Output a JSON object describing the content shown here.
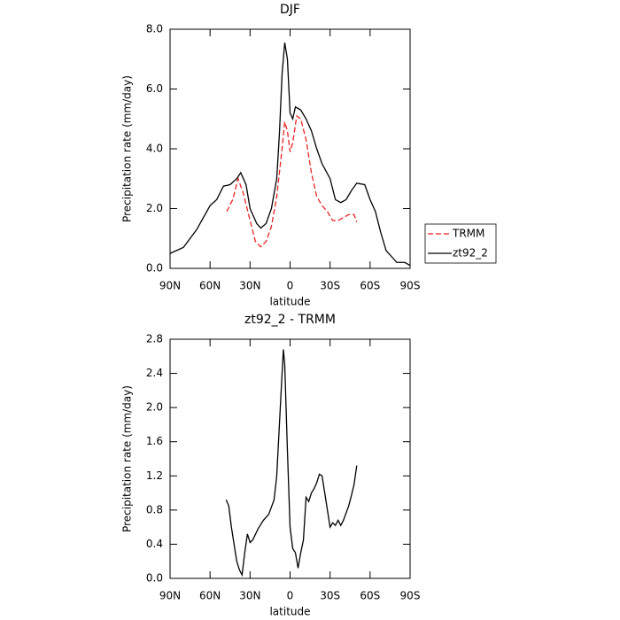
{
  "chart_data": [
    {
      "type": "line",
      "title": "DJF",
      "xlabel": "latitude",
      "ylabel": "Precipitation rate (mm/day)",
      "xlim": [
        90,
        -90
      ],
      "ylim": [
        0,
        8
      ],
      "xticks": [
        {
          "value": 90,
          "label": "90N"
        },
        {
          "value": 60,
          "label": "60N"
        },
        {
          "value": 30,
          "label": "30N"
        },
        0,
        {
          "value": -30,
          "label": "30S"
        },
        {
          "value": -60,
          "label": "60S"
        },
        {
          "value": -90,
          "label": "90S"
        }
      ],
      "yticks": [
        {
          "value": 0,
          "label": "0.0"
        },
        {
          "value": 2,
          "label": "2.0"
        },
        {
          "value": 4,
          "label": "4.0"
        },
        {
          "value": 6,
          "label": "6.0"
        },
        {
          "value": 8,
          "label": "8.0"
        }
      ],
      "legend": "right",
      "series": [
        {
          "name": "TRMM",
          "color": "#e8231f",
          "linestyle": "dashed",
          "x": [
            47.5,
            43,
            39,
            35,
            30,
            26,
            22,
            18,
            14,
            10,
            6,
            4,
            2,
            0,
            -2,
            -5,
            -8,
            -12,
            -16,
            -20,
            -24,
            -28,
            -32,
            -36,
            -40,
            -44,
            -48,
            -50
          ],
          "values": [
            1.9,
            2.3,
            3.0,
            2.5,
            1.6,
            0.9,
            0.72,
            0.9,
            1.4,
            2.4,
            4.0,
            4.9,
            4.6,
            3.9,
            4.2,
            5.1,
            5.0,
            4.3,
            3.2,
            2.4,
            2.1,
            1.9,
            1.6,
            1.6,
            1.7,
            1.8,
            1.8,
            1.55
          ]
        },
        {
          "name": "zt92_2",
          "color": "#000000",
          "linestyle": "solid",
          "x": [
            90,
            80,
            70,
            60,
            55,
            50,
            45,
            40,
            37,
            33,
            30,
            25,
            22,
            18,
            14,
            10,
            8,
            6,
            4,
            2,
            0,
            -2,
            -4,
            -8,
            -12,
            -16,
            -20,
            -24,
            -30,
            -34,
            -38,
            -42,
            -46,
            -50,
            -56,
            -60,
            -64,
            -68,
            -72,
            -76,
            -80,
            -86,
            -90
          ],
          "values": [
            0.5,
            0.7,
            1.3,
            2.1,
            2.3,
            2.75,
            2.8,
            3.0,
            3.2,
            2.8,
            2.0,
            1.5,
            1.35,
            1.5,
            2.0,
            3.0,
            4.5,
            6.5,
            7.55,
            7.0,
            5.2,
            5.0,
            5.4,
            5.3,
            5.0,
            4.6,
            4.0,
            3.5,
            3.0,
            2.3,
            2.2,
            2.3,
            2.6,
            2.85,
            2.8,
            2.3,
            1.9,
            1.2,
            0.6,
            0.4,
            0.2,
            0.2,
            0.1
          ]
        }
      ]
    },
    {
      "type": "line",
      "title": "zt92_2 - TRMM",
      "xlabel": "latitude",
      "ylabel": "Precipitation rate (mm/day)",
      "xlim": [
        90,
        -90
      ],
      "ylim": [
        0,
        2.8
      ],
      "xticks": [
        {
          "value": 90,
          "label": "90N"
        },
        {
          "value": 60,
          "label": "60N"
        },
        {
          "value": 30,
          "label": "30N"
        },
        0,
        {
          "value": -30,
          "label": "30S"
        },
        {
          "value": -60,
          "label": "60S"
        },
        {
          "value": -90,
          "label": "90S"
        }
      ],
      "yticks": [
        {
          "value": 0,
          "label": "0.0"
        },
        0.4,
        0.8,
        1.2,
        1.6,
        {
          "value": 2,
          "label": "2.0"
        },
        2.4,
        2.8
      ],
      "series": [
        {
          "color": "#000000",
          "linestyle": "solid",
          "x": [
            48,
            46,
            44,
            42,
            40,
            38,
            36,
            34,
            32,
            30,
            28,
            24,
            20,
            16,
            12,
            10,
            8,
            6,
            5,
            4,
            2,
            0,
            -2,
            -4,
            -6,
            -8,
            -10,
            -12,
            -14,
            -16,
            -18,
            -20,
            -22,
            -24,
            -26,
            -28,
            -30,
            -32,
            -34,
            -36,
            -38,
            -40,
            -44,
            -46,
            -48,
            -50
          ],
          "values": [
            0.92,
            0.85,
            0.6,
            0.4,
            0.2,
            0.1,
            0.04,
            0.3,
            0.52,
            0.42,
            0.45,
            0.58,
            0.68,
            0.75,
            0.92,
            1.2,
            1.8,
            2.4,
            2.68,
            2.5,
            1.5,
            0.6,
            0.35,
            0.3,
            0.12,
            0.3,
            0.45,
            0.95,
            0.9,
            1.0,
            1.05,
            1.12,
            1.22,
            1.2,
            1.0,
            0.8,
            0.6,
            0.65,
            0.62,
            0.68,
            0.62,
            0.68,
            0.85,
            0.97,
            1.1,
            1.32
          ]
        }
      ]
    }
  ]
}
